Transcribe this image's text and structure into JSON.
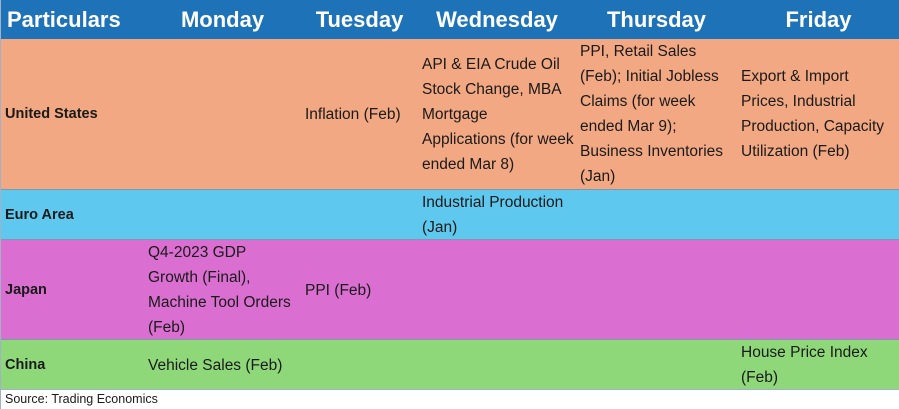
{
  "headers": [
    "Particulars",
    "Monday",
    "Tuesday",
    "Wednesday",
    "Thursday",
    "Friday"
  ],
  "rows": [
    {
      "name": "United States",
      "monday": "",
      "tuesday": "Inflation (Feb)",
      "wednesday": "API & EIA Crude Oil Stock Change, MBA Mortgage Applications (for week ended Mar 8)",
      "thursday": "PPI, Retail Sales (Feb); Initial Jobless Claims (for week ended Mar 9); Business Inventories (Jan)",
      "friday": "Export & Import Prices, Industrial Production, Capacity Utilization (Feb)"
    },
    {
      "name": "Euro Area",
      "monday": "",
      "tuesday": "",
      "wednesday": "Industrial Production (Jan)",
      "thursday": "",
      "friday": ""
    },
    {
      "name": "Japan",
      "monday": "Q4-2023 GDP Growth (Final), Machine Tool Orders (Feb)",
      "tuesday": "PPI (Feb)",
      "wednesday": "",
      "thursday": "",
      "friday": ""
    },
    {
      "name": "China",
      "monday": "Vehicle Sales (Feb)",
      "tuesday": "",
      "wednesday": "",
      "thursday": "",
      "friday": "House Price Index (Feb)"
    }
  ],
  "source": "Source: Trading Economics",
  "colors": {
    "header": "#1d72b8",
    "united_states": "#f2a882",
    "euro_area": "#5ec8ef",
    "japan": "#da6fd1",
    "china": "#8fd87a"
  }
}
